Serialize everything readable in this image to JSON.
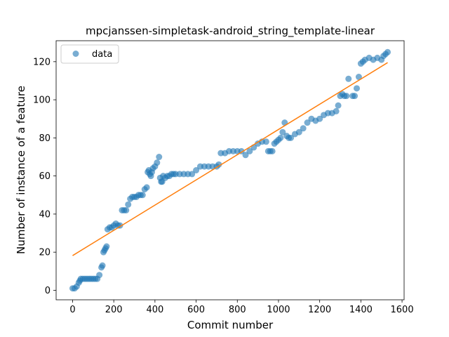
{
  "chart_data": {
    "type": "scatter",
    "title": "mpcjanssen-simpletask-android_string_template-linear",
    "xlabel": "Commit number",
    "ylabel": "Number of instance of a feature",
    "xlim": [
      -80,
      1610
    ],
    "ylim": [
      -5,
      131
    ],
    "xticks": [
      0,
      200,
      400,
      600,
      800,
      1000,
      1200,
      1400,
      1600
    ],
    "yticks": [
      0,
      20,
      40,
      60,
      80,
      100,
      120
    ],
    "legend": {
      "placement": "top-left",
      "entries": [
        "data"
      ]
    },
    "colors": {
      "points": "#1f77b4",
      "fit": "#ff7f0e"
    },
    "series": [
      {
        "name": "data",
        "kind": "scatter",
        "x": [
          0,
          10,
          20,
          30,
          35,
          40,
          50,
          60,
          70,
          80,
          90,
          100,
          110,
          120,
          130,
          140,
          145,
          150,
          155,
          160,
          165,
          170,
          180,
          190,
          200,
          210,
          220,
          230,
          240,
          250,
          260,
          270,
          280,
          290,
          300,
          310,
          320,
          330,
          340,
          350,
          360,
          365,
          370,
          375,
          380,
          385,
          390,
          400,
          410,
          420,
          425,
          430,
          435,
          440,
          450,
          460,
          470,
          480,
          490,
          500,
          520,
          540,
          560,
          580,
          600,
          620,
          640,
          660,
          680,
          700,
          710,
          720,
          740,
          760,
          780,
          800,
          820,
          840,
          860,
          880,
          900,
          920,
          940,
          950,
          960,
          970,
          980,
          990,
          1000,
          1010,
          1020,
          1030,
          1040,
          1050,
          1060,
          1080,
          1100,
          1120,
          1140,
          1160,
          1180,
          1200,
          1220,
          1240,
          1260,
          1280,
          1290,
          1300,
          1310,
          1320,
          1330,
          1340,
          1360,
          1370,
          1380,
          1390,
          1400,
          1410,
          1420,
          1440,
          1460,
          1480,
          1500,
          1510,
          1520,
          1530
        ],
        "y": [
          1,
          1,
          2,
          4,
          5,
          6,
          6,
          6,
          6,
          6,
          6,
          6,
          6,
          6,
          8,
          12,
          13,
          20,
          21,
          22,
          23,
          32,
          33,
          33,
          34,
          35,
          34,
          34,
          42,
          42,
          42,
          45,
          48,
          49,
          49,
          49,
          50,
          50,
          50,
          53,
          54,
          62,
          63,
          61,
          60,
          62,
          64,
          65,
          67,
          70,
          59,
          57,
          57,
          60,
          59,
          60,
          60,
          61,
          61,
          61,
          61,
          61,
          61,
          61,
          63,
          65,
          65,
          65,
          65,
          65,
          66,
          72,
          72,
          73,
          73,
          73,
          73,
          71,
          73,
          75,
          77,
          78,
          78,
          73,
          73,
          73,
          77,
          78,
          79,
          80,
          83,
          88,
          81,
          80,
          80,
          82,
          83,
          85,
          88,
          90,
          89,
          90,
          92,
          93,
          93,
          94,
          97,
          102,
          103,
          102,
          102,
          111,
          102,
          102,
          106,
          112,
          119,
          120,
          121,
          122,
          121,
          122,
          121,
          123,
          124,
          125
        ]
      },
      {
        "name": "",
        "kind": "line",
        "x": [
          0,
          1530
        ],
        "y": [
          18.2,
          119.5
        ]
      }
    ]
  }
}
